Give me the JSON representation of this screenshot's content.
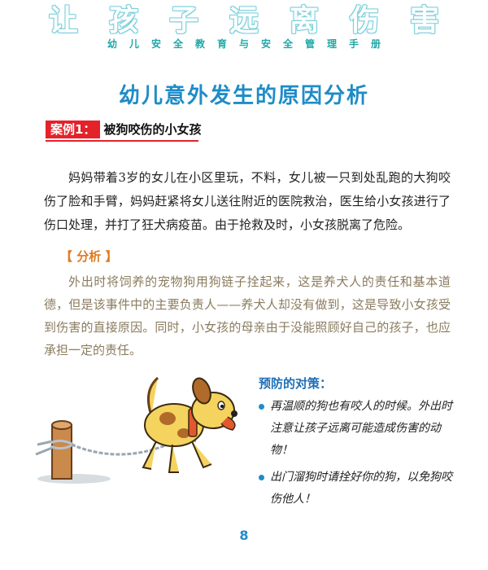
{
  "header": {
    "title": "让孩子远离伤害",
    "subtitle": "幼儿安全教育与安全管理手册"
  },
  "page_title": "幼儿意外发生的原因分析",
  "case": {
    "label": "案例1：",
    "title": "被狗咬伤的小女孩",
    "story": "妈妈带着3岁的女儿在小区里玩，不料，女儿被一只到处乱跑的大狗咬伤了脸和手臂，妈妈赶紧将女儿送往附近的医院救治，医生给小女孩进行了伤口处理，并打了狂犬病疫苗。由于抢救及时，小女孩脱离了危险。"
  },
  "analysis": {
    "heading": "【 分析 】",
    "text": "外出时将饲养的宠物狗用狗链子拴起来，这是养犬人的责任和基本道德，但是该事件中的主要负责人——养犬人却没有做到，这是导致小女孩受到伤害的直接原因。同时，小女孩的母亲由于没能照顾好自己的孩子，也应承担一定的责任。"
  },
  "prevention": {
    "title": "预防的对策：",
    "items": [
      "再温顺的狗也有咬人的时候。外出时注意让孩子远离可能造成伤害的动物！",
      "出门溜狗时请拴好你的狗，以免狗咬伤他人！"
    ]
  },
  "page_number": "8"
}
